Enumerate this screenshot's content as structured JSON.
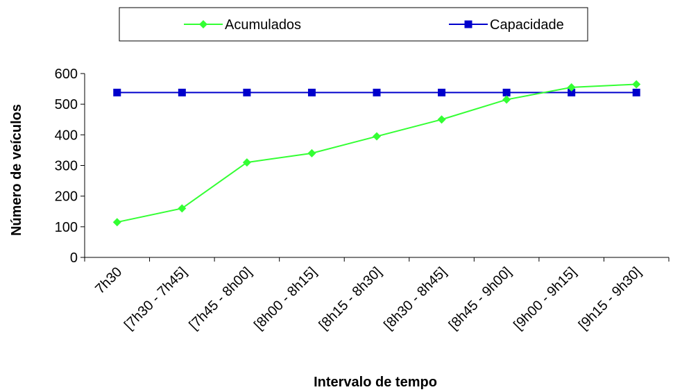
{
  "chart_data": {
    "type": "line",
    "title": "",
    "xlabel": "Intervalo de tempo",
    "ylabel": "Número de veículos",
    "categories": [
      "7h30",
      "[7h30 - 7h45]",
      "[7h45 - 8h00]",
      "[8h00 - 8h15]",
      "[8h15 - 8h30]",
      "[8h30 - 8h45]",
      "[8h45 - 9h00]",
      "[9h00 - 9h15]",
      "[9h15 - 9h30]"
    ],
    "ylim": [
      0,
      600
    ],
    "yticks": [
      "0",
      "100",
      "200",
      "300",
      "400",
      "500",
      "600"
    ],
    "grid": false,
    "legend_position": "top",
    "series": [
      {
        "name": "Acumulados",
        "color": "#33ff33",
        "marker": "diamond",
        "values": [
          115,
          160,
          310,
          340,
          395,
          450,
          515,
          555,
          565
        ]
      },
      {
        "name": "Capacidade",
        "color": "#0000cc",
        "marker": "square",
        "values": [
          538,
          538,
          538,
          538,
          538,
          538,
          538,
          538,
          538
        ]
      }
    ]
  }
}
